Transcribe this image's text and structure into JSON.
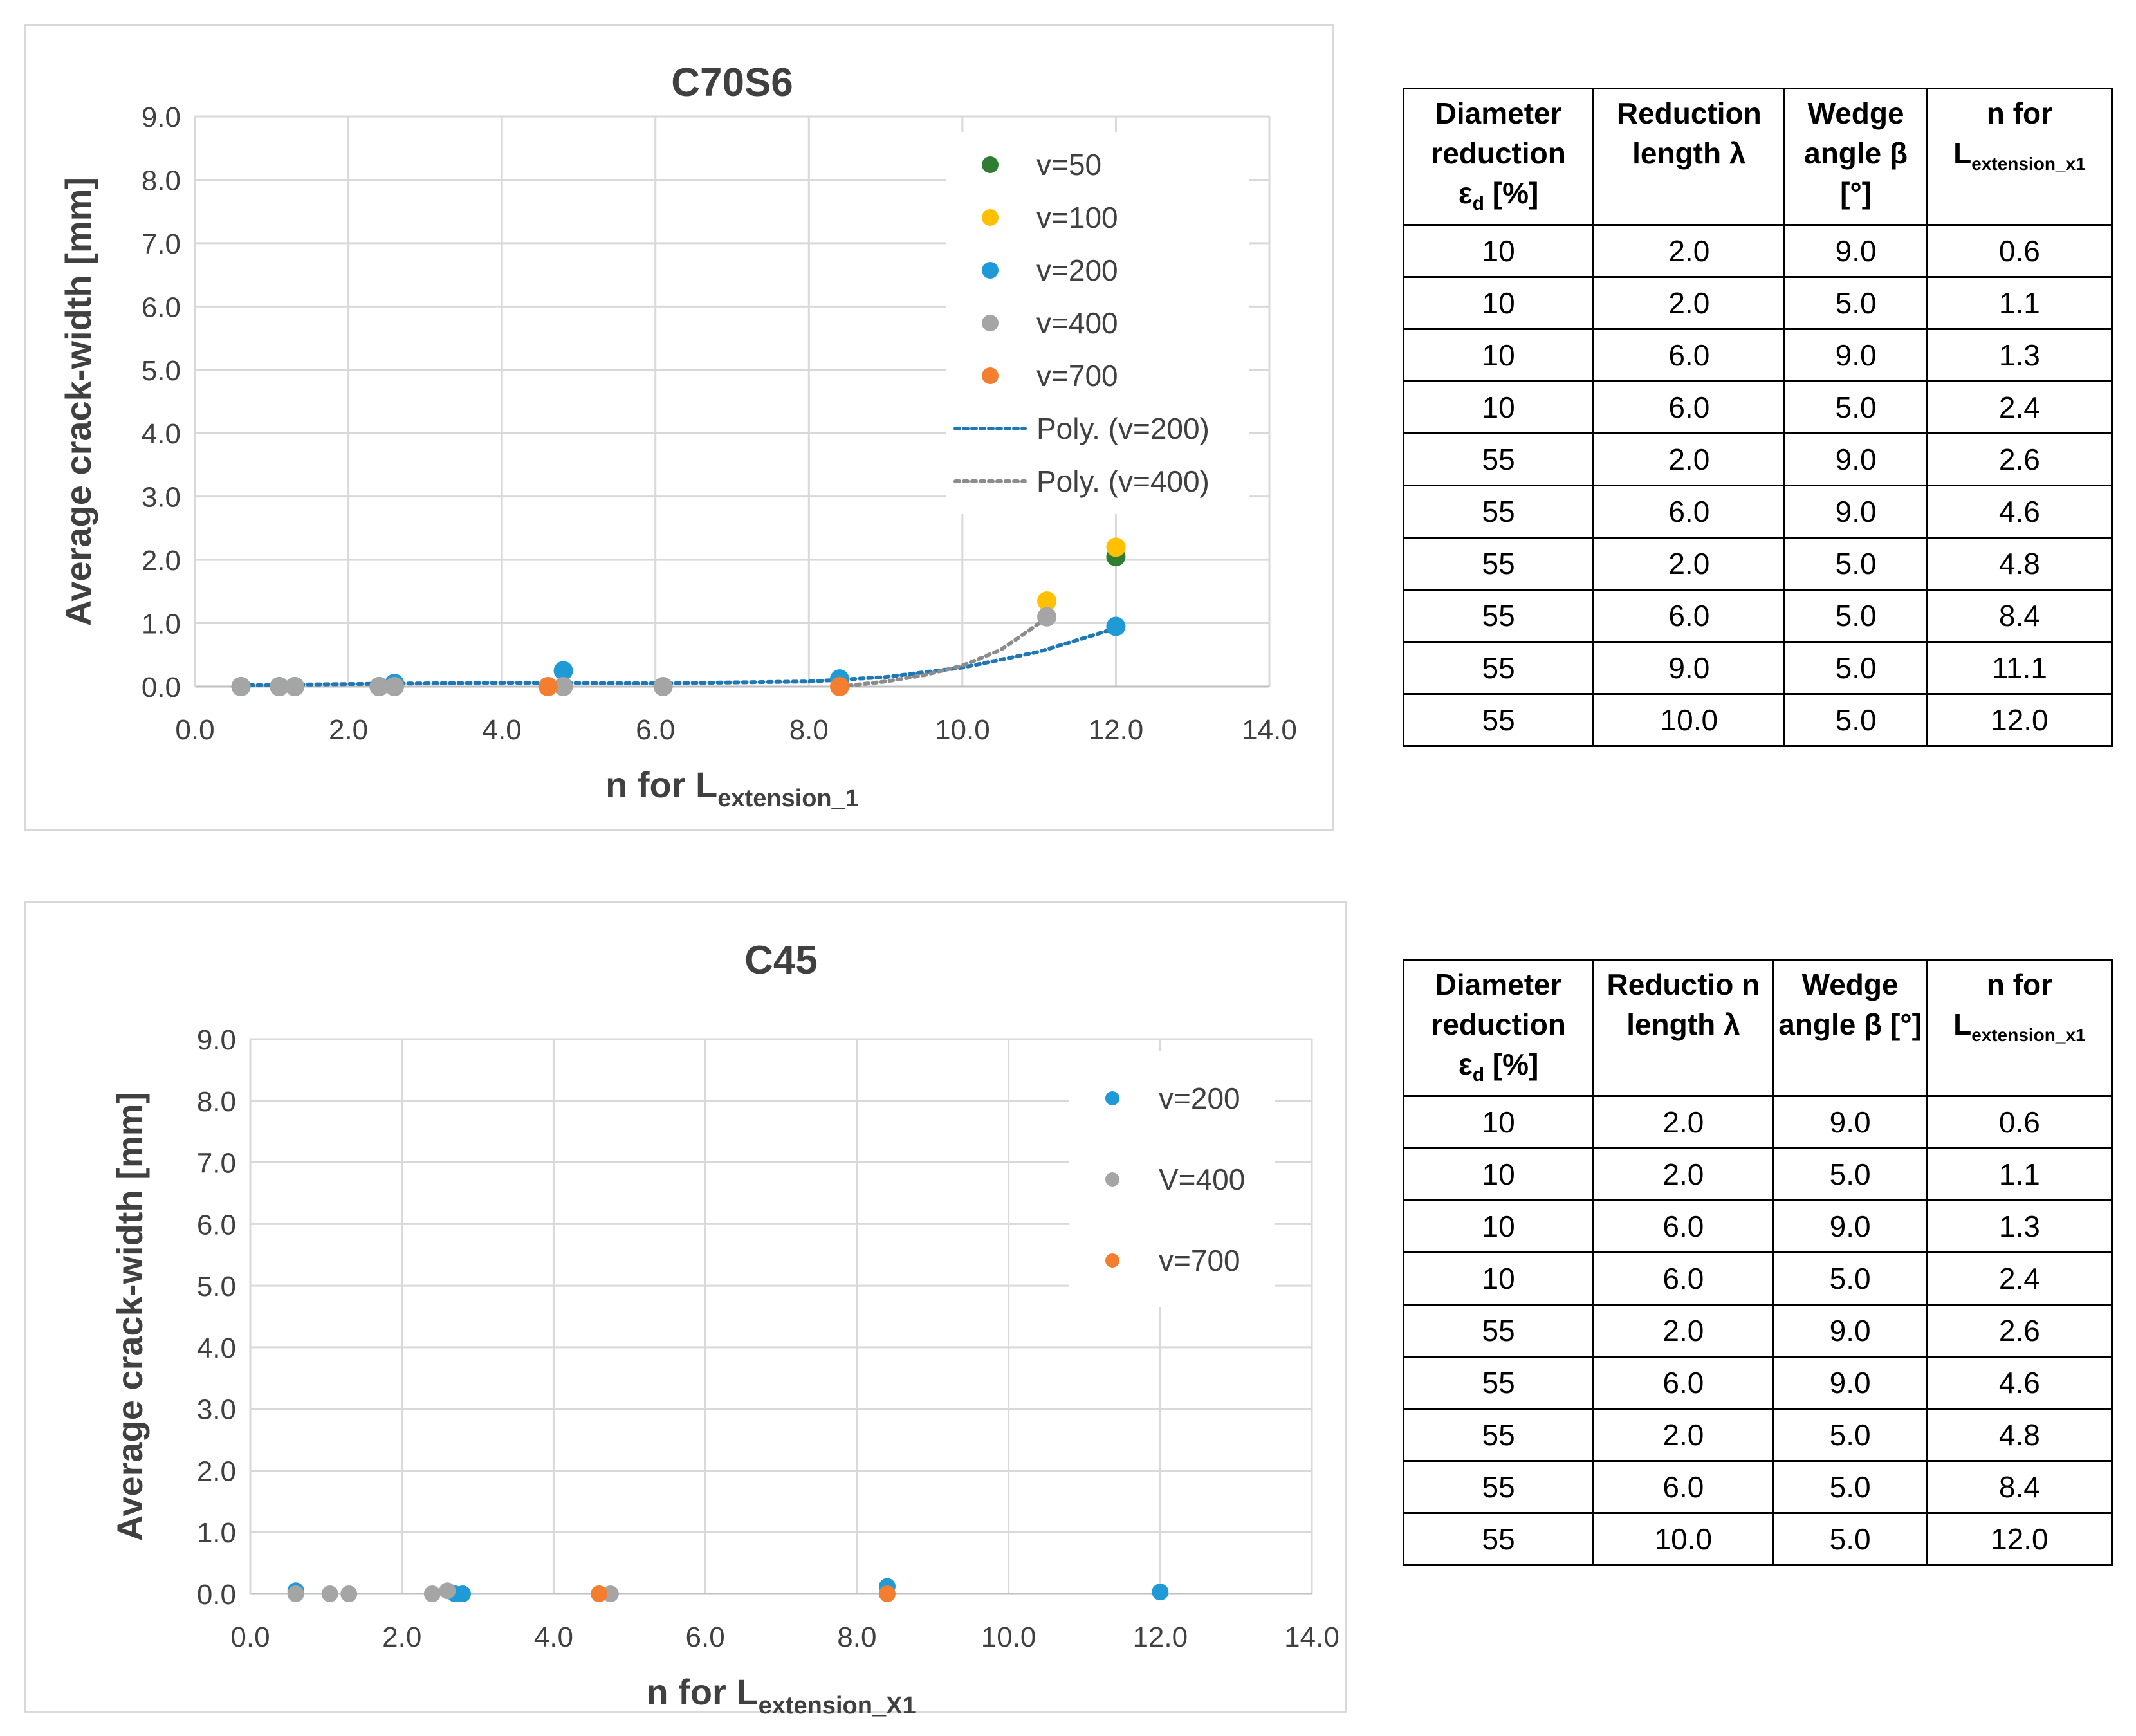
{
  "charts": [
    {
      "title": "C70S6",
      "ylabel": "Average crack-width [mm]",
      "xlabel_main": "n for L",
      "xlabel_sub": "extension_1",
      "xticks": [
        "0.0",
        "2.0",
        "4.0",
        "6.0",
        "8.0",
        "10.0",
        "12.0",
        "14.0"
      ],
      "yticks": [
        "0.0",
        "1.0",
        "2.0",
        "3.0",
        "4.0",
        "5.0",
        "6.0",
        "7.0",
        "8.0",
        "9.0"
      ],
      "legend": [
        {
          "label": "v=50",
          "color": "#2e7d32",
          "kind": "marker"
        },
        {
          "label": "v=100",
          "color": "#ffc000",
          "kind": "marker"
        },
        {
          "label": "v=200",
          "color": "#1f9ad6",
          "kind": "marker"
        },
        {
          "label": "v=400",
          "color": "#a5a5a5",
          "kind": "marker"
        },
        {
          "label": "v=700",
          "color": "#f47e30",
          "kind": "marker"
        },
        {
          "label": "Poly. (v=200)",
          "color": "#1f77b4",
          "kind": "line"
        },
        {
          "label": "Poly. (v=400)",
          "color": "#8c8c8c",
          "kind": "line"
        }
      ]
    },
    {
      "title": "C45",
      "ylabel": "Average crack-width [mm]",
      "xlabel_main": "n for L",
      "xlabel_sub": "extension_X1",
      "xticks": [
        "0.0",
        "2.0",
        "4.0",
        "6.0",
        "8.0",
        "10.0",
        "12.0",
        "14.0"
      ],
      "yticks": [
        "0.0",
        "1.0",
        "2.0",
        "3.0",
        "4.0",
        "5.0",
        "6.0",
        "7.0",
        "8.0",
        "9.0"
      ],
      "legend": [
        {
          "label": "v=200",
          "color": "#1f9ad6",
          "kind": "marker"
        },
        {
          "label": "V=400",
          "color": "#a5a5a5",
          "kind": "marker"
        },
        {
          "label": "v=700",
          "color": "#f47e30",
          "kind": "marker"
        }
      ]
    }
  ],
  "chart_data": [
    {
      "type": "scatter",
      "title": "C70S6",
      "xlabel": "n for Lextension_1",
      "ylabel": "Average crack-width [mm]",
      "xlim": [
        0,
        14
      ],
      "ylim": [
        0,
        9
      ],
      "grid": true,
      "legend_position": "top-right",
      "series": [
        {
          "name": "v=50",
          "color": "#2e7d32",
          "points": [
            [
              12.0,
              2.05
            ]
          ]
        },
        {
          "name": "v=100",
          "color": "#ffc000",
          "points": [
            [
              11.1,
              1.35
            ],
            [
              12.0,
              2.2
            ]
          ]
        },
        {
          "name": "v=200",
          "color": "#1f9ad6",
          "points": [
            [
              0.6,
              0.0
            ],
            [
              1.1,
              0.0
            ],
            [
              1.3,
              0.0
            ],
            [
              2.4,
              0.0
            ],
            [
              2.6,
              0.05
            ],
            [
              4.8,
              0.25
            ],
            [
              8.4,
              0.12
            ],
            [
              12.0,
              0.95
            ]
          ]
        },
        {
          "name": "v=400",
          "color": "#a5a5a5",
          "points": [
            [
              0.6,
              0.0
            ],
            [
              1.1,
              0.0
            ],
            [
              1.3,
              0.0
            ],
            [
              2.4,
              0.0
            ],
            [
              2.6,
              0.0
            ],
            [
              4.8,
              0.0
            ],
            [
              6.1,
              0.0
            ],
            [
              11.1,
              1.1
            ]
          ]
        },
        {
          "name": "v=700",
          "color": "#f47e30",
          "points": [
            [
              4.6,
              0.0
            ],
            [
              8.4,
              0.0
            ]
          ]
        }
      ],
      "trendlines": [
        {
          "name": "Poly. (v=200)",
          "color": "#1f77b4",
          "points": [
            [
              0.6,
              0.02
            ],
            [
              2.0,
              0.04
            ],
            [
              4.0,
              0.06
            ],
            [
              6.0,
              0.05
            ],
            [
              8.0,
              0.08
            ],
            [
              9.0,
              0.15
            ],
            [
              10.0,
              0.3
            ],
            [
              11.0,
              0.55
            ],
            [
              12.0,
              0.92
            ]
          ]
        },
        {
          "name": "Poly. (v=400)",
          "color": "#8c8c8c",
          "points": [
            [
              8.4,
              0.0
            ],
            [
              9.0,
              0.08
            ],
            [
              9.5,
              0.18
            ],
            [
              10.0,
              0.33
            ],
            [
              10.5,
              0.58
            ],
            [
              11.1,
              1.08
            ]
          ]
        }
      ]
    },
    {
      "type": "scatter",
      "title": "C45",
      "xlabel": "n for Lextension_X1",
      "ylabel": "Average crack-width [mm]",
      "xlim": [
        0,
        14
      ],
      "ylim": [
        0,
        9
      ],
      "grid": true,
      "legend_position": "top-right",
      "series": [
        {
          "name": "v=200",
          "color": "#1f9ad6",
          "points": [
            [
              0.6,
              0.05
            ],
            [
              2.7,
              0.0
            ],
            [
              2.8,
              0.0
            ],
            [
              8.4,
              0.12
            ],
            [
              12.0,
              0.03
            ]
          ]
        },
        {
          "name": "V=400",
          "color": "#a5a5a5",
          "points": [
            [
              0.6,
              0.0
            ],
            [
              1.05,
              0.0
            ],
            [
              1.3,
              0.0
            ],
            [
              2.4,
              0.0
            ],
            [
              2.6,
              0.05
            ],
            [
              4.75,
              0.0
            ]
          ]
        },
        {
          "name": "v=700",
          "color": "#f47e30",
          "points": [
            [
              4.6,
              0.0
            ],
            [
              8.4,
              0.0
            ]
          ]
        }
      ]
    }
  ],
  "tables": [
    {
      "headers": [
        "Diameter reduction",
        "ε",
        "d",
        " [%]",
        "Reduction length λ",
        "Wedge angle β [°]",
        "n for",
        "L",
        "extension_x1"
      ],
      "rows": [
        [
          "10",
          "2.0",
          "9.0",
          "0.6"
        ],
        [
          "10",
          "2.0",
          "5.0",
          "1.1"
        ],
        [
          "10",
          "6.0",
          "9.0",
          "1.3"
        ],
        [
          "10",
          "6.0",
          "5.0",
          "2.4"
        ],
        [
          "55",
          "2.0",
          "9.0",
          "2.6"
        ],
        [
          "55",
          "6.0",
          "9.0",
          "4.6"
        ],
        [
          "55",
          "2.0",
          "5.0",
          "4.8"
        ],
        [
          "55",
          "6.0",
          "5.0",
          "8.4"
        ],
        [
          "55",
          "9.0",
          "5.0",
          "11.1"
        ],
        [
          "55",
          "10.0",
          "5.0",
          "12.0"
        ]
      ]
    },
    {
      "headers": [
        "Diameter reduction",
        "ε",
        "d",
        " [%]",
        "Reductio n length λ",
        "Wedge angle β [°]",
        "n for",
        "L",
        "extension_x1"
      ],
      "rows": [
        [
          "10",
          "2.0",
          "9.0",
          "0.6"
        ],
        [
          "10",
          "2.0",
          "5.0",
          "1.1"
        ],
        [
          "10",
          "6.0",
          "9.0",
          "1.3"
        ],
        [
          "10",
          "6.0",
          "5.0",
          "2.4"
        ],
        [
          "55",
          "2.0",
          "9.0",
          "2.6"
        ],
        [
          "55",
          "6.0",
          "9.0",
          "4.6"
        ],
        [
          "55",
          "2.0",
          "5.0",
          "4.8"
        ],
        [
          "55",
          "6.0",
          "5.0",
          "8.4"
        ],
        [
          "55",
          "10.0",
          "5.0",
          "12.0"
        ]
      ]
    }
  ]
}
